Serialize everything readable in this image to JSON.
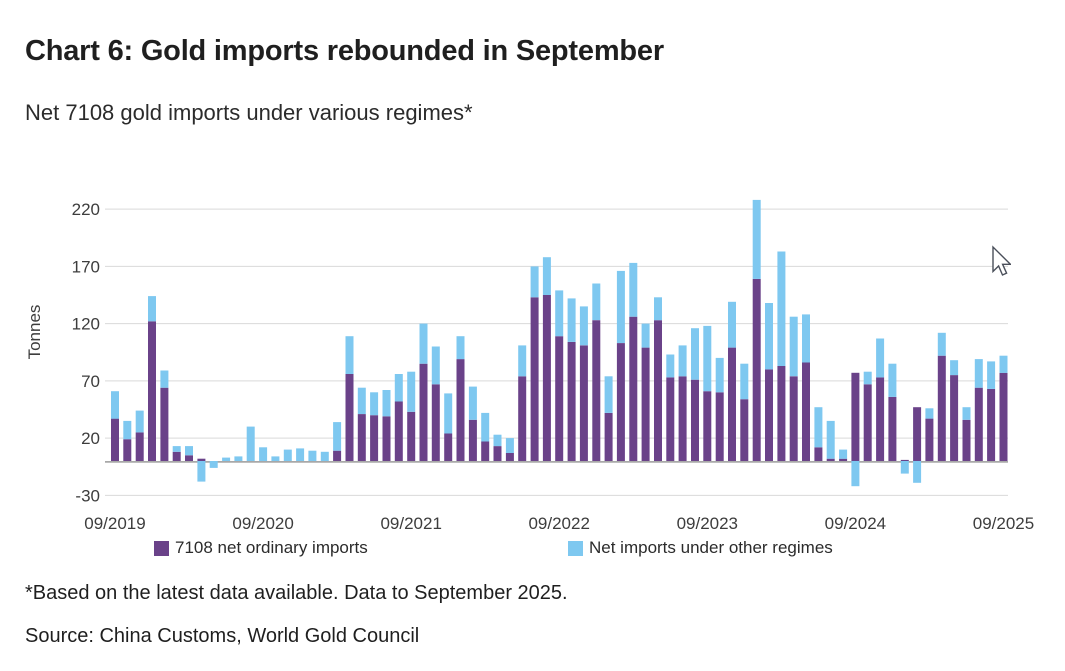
{
  "header": {
    "title": "Chart 6: Gold imports rebounded in September",
    "subtitle": "Net 7108 gold imports under various regimes*"
  },
  "footer": {
    "note": "*Based on the latest data available. Data to September 2025.",
    "source": "Source: China Customs, World Gold Council"
  },
  "colors": {
    "ordinary_purple": "#6A4289",
    "other_blue": "#7EC8F0",
    "gridline": "#d9d9d9",
    "zero_axis": "#a8a8a8",
    "tick_text": "#3d3d3d"
  },
  "chart_data": {
    "type": "bar",
    "stacked": true,
    "title": "Net 7108 gold imports under various regimes*",
    "xlabel": "",
    "ylabel": "Tonnes",
    "ylim": [
      -30,
      230
    ],
    "y_ticks": [
      220,
      170,
      120,
      70,
      20,
      -30
    ],
    "grid": "horizontal",
    "legend_position": "bottom",
    "x_tick_labels": [
      "09/2019",
      "09/2020",
      "09/2021",
      "09/2022",
      "09/2023",
      "09/2024",
      "09/2025"
    ],
    "x_tick_every": 12,
    "categories": [
      "09/2019",
      "10/2019",
      "11/2019",
      "12/2019",
      "01/2020",
      "02/2020",
      "03/2020",
      "04/2020",
      "05/2020",
      "06/2020",
      "07/2020",
      "08/2020",
      "09/2020",
      "10/2020",
      "11/2020",
      "12/2020",
      "01/2021",
      "02/2021",
      "03/2021",
      "04/2021",
      "05/2021",
      "06/2021",
      "07/2021",
      "08/2021",
      "09/2021",
      "10/2021",
      "11/2021",
      "12/2021",
      "01/2022",
      "02/2022",
      "03/2022",
      "04/2022",
      "05/2022",
      "06/2022",
      "07/2022",
      "08/2022",
      "09/2022",
      "10/2022",
      "11/2022",
      "12/2022",
      "01/2023",
      "02/2023",
      "03/2023",
      "04/2023",
      "05/2023",
      "06/2023",
      "07/2023",
      "08/2023",
      "09/2023",
      "10/2023",
      "11/2023",
      "12/2023",
      "01/2024",
      "02/2024",
      "03/2024",
      "04/2024",
      "05/2024",
      "06/2024",
      "07/2024",
      "08/2024",
      "09/2024",
      "10/2024",
      "11/2024",
      "12/2024",
      "01/2025",
      "02/2025",
      "03/2025",
      "04/2025",
      "05/2025",
      "06/2025",
      "07/2025",
      "08/2025",
      "09/2025"
    ],
    "series": [
      {
        "name": "7108 net ordinary imports",
        "color": "#6A4289",
        "values": [
          37,
          19,
          25,
          122,
          64,
          8,
          5,
          2,
          0,
          0,
          0,
          0,
          0,
          0,
          0,
          0,
          0,
          0,
          9,
          76,
          41,
          40,
          39,
          52,
          43,
          85,
          67,
          24,
          89,
          36,
          17,
          13,
          7,
          74,
          143,
          145,
          109,
          104,
          101,
          123,
          42,
          103,
          126,
          99,
          123,
          73,
          74,
          71,
          61,
          60,
          99,
          54,
          159,
          80,
          83,
          74,
          86,
          12,
          2,
          2,
          77,
          67,
          73,
          56,
          1,
          47,
          37,
          92,
          75,
          36,
          64,
          63,
          77
        ]
      },
      {
        "name": "Net imports under other regimes",
        "color": "#7EC8F0",
        "values": [
          24,
          16,
          19,
          22,
          15,
          5,
          8,
          -18,
          -6,
          3,
          4,
          30,
          12,
          4,
          10,
          11,
          9,
          8,
          25,
          33,
          23,
          20,
          23,
          24,
          35,
          35,
          33,
          35,
          20,
          29,
          25,
          10,
          13,
          27,
          27,
          33,
          40,
          38,
          34,
          32,
          32,
          63,
          47,
          21,
          20,
          20,
          27,
          45,
          57,
          30,
          40,
          31,
          69,
          58,
          100,
          52,
          42,
          35,
          33,
          8,
          -22,
          11,
          34,
          29,
          -11,
          -19,
          9,
          20,
          13,
          11,
          25,
          24,
          15
        ]
      }
    ]
  }
}
